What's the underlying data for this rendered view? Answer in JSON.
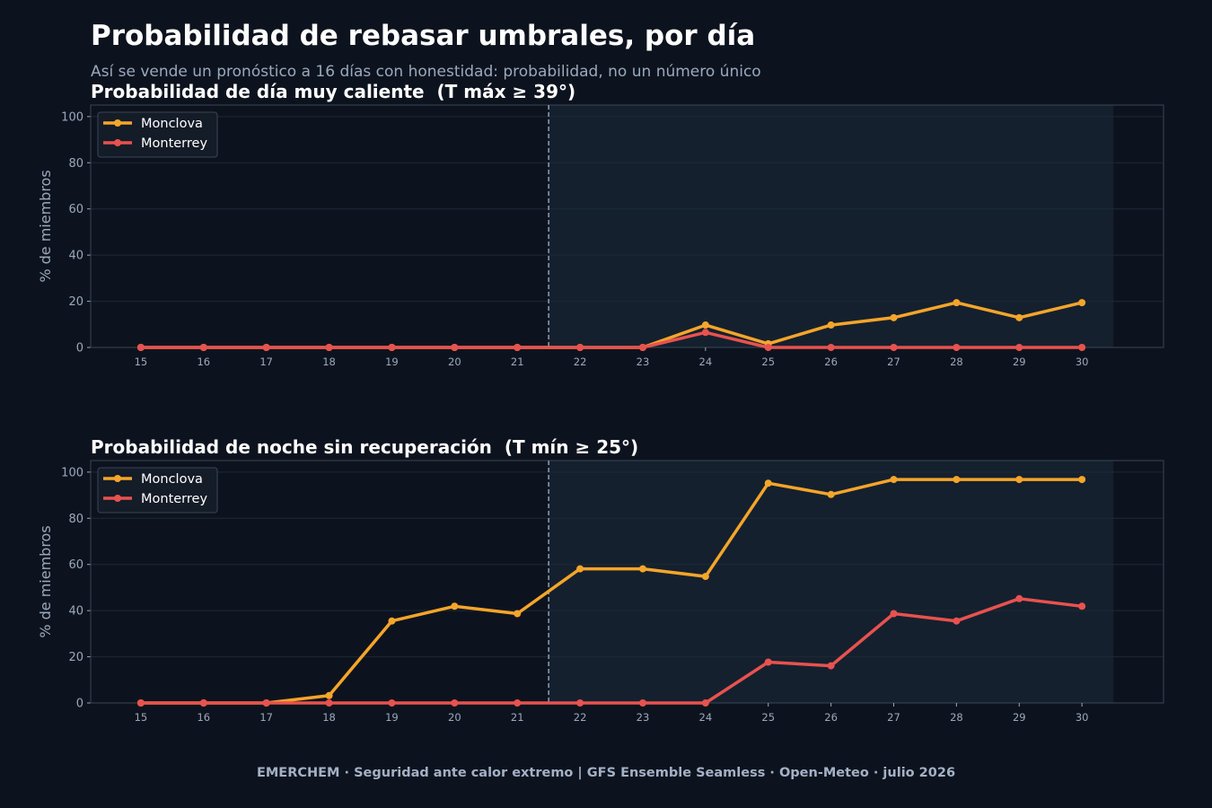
{
  "page": {
    "title": "Probabilidad de rebasar umbrales, por día",
    "subtitle": "Así se vende un pronóstico a 16 días con honestidad: probabilidad, no un número único",
    "footer": "EMERCHEM · Seguridad ante calor extremo  |  GFS Ensemble Seamless · Open-Meteo · julio 2026"
  },
  "colors": {
    "background": "#0d131e",
    "forecast_band": "#15202e",
    "grid": "#1c2a36",
    "axis": "#3a4654",
    "tick_text": "#9aa9bd",
    "divider": "#8a96a8",
    "monclova": "#f5a52a",
    "monterrey": "#e8524f"
  },
  "chart_data": [
    {
      "type": "line",
      "title": "Probabilidad de día muy caliente  (T máx ≥ 39°)",
      "xlabel": "",
      "ylabel": "% de miembros",
      "x": [
        15,
        16,
        17,
        18,
        19,
        20,
        21,
        22,
        23,
        24,
        25,
        26,
        27,
        28,
        29,
        30
      ],
      "xlim": [
        14.2,
        31.3
      ],
      "ylim": [
        0,
        105
      ],
      "yticks": [
        0,
        20,
        40,
        60,
        80,
        100
      ],
      "forecast_divider_x": 21.5,
      "forecast_band": [
        21.5,
        30.5
      ],
      "grid": true,
      "legend_position": "top-left",
      "series": [
        {
          "name": "Monclova",
          "color": "#f5a52a",
          "values": [
            0,
            0,
            0,
            0,
            0,
            0,
            0,
            0,
            0,
            9.7,
            1.6,
            9.7,
            12.9,
            19.4,
            12.9,
            19.4
          ]
        },
        {
          "name": "Monterrey",
          "color": "#e8524f",
          "values": [
            0,
            0,
            0,
            0,
            0,
            0,
            0,
            0,
            0,
            6.5,
            0,
            0,
            0,
            0,
            0,
            0
          ]
        }
      ]
    },
    {
      "type": "line",
      "title": "Probabilidad de noche sin recuperación  (T mín ≥ 25°)",
      "xlabel": "",
      "ylabel": "% de miembros",
      "x": [
        15,
        16,
        17,
        18,
        19,
        20,
        21,
        22,
        23,
        24,
        25,
        26,
        27,
        28,
        29,
        30
      ],
      "xlim": [
        14.2,
        31.3
      ],
      "ylim": [
        0,
        105
      ],
      "yticks": [
        0,
        20,
        40,
        60,
        80,
        100
      ],
      "forecast_divider_x": 21.5,
      "forecast_band": [
        21.5,
        30.5
      ],
      "grid": true,
      "legend_position": "top-left",
      "series": [
        {
          "name": "Monclova",
          "color": "#f5a52a",
          "values": [
            0,
            0,
            0,
            3.2,
            35.5,
            41.9,
            38.7,
            58.1,
            58.1,
            54.8,
            95.2,
            90.3,
            96.8,
            96.8,
            96.8,
            96.8
          ]
        },
        {
          "name": "Monterrey",
          "color": "#e8524f",
          "values": [
            0,
            0,
            0,
            0,
            0,
            0,
            0,
            0,
            0,
            0,
            17.7,
            16.1,
            38.7,
            35.5,
            45.2,
            41.9
          ]
        }
      ]
    }
  ]
}
